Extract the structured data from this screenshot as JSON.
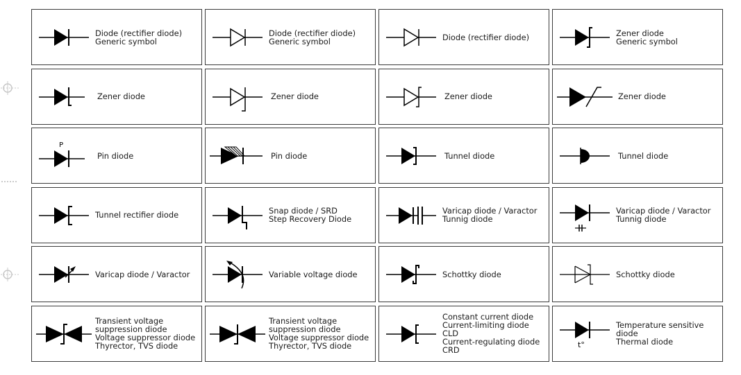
{
  "margin_icons": [
    "crosshair-icon",
    "dotted-line-icon",
    "crosshair-icon"
  ],
  "cells": [
    {
      "symbol": "filled-diode-icon",
      "lines": [
        "Diode (rectifier diode)",
        "Generic symbol"
      ]
    },
    {
      "symbol": "outline-diode-icon",
      "lines": [
        "Diode (rectifier diode)",
        "Generic symbol"
      ]
    },
    {
      "symbol": "outline-diode-icon",
      "lines": [
        "Diode (rectifier diode)"
      ]
    },
    {
      "symbol": "filled-zener-diode-icon",
      "lines": [
        "Zener diode",
        "Generic symbol"
      ]
    },
    {
      "symbol": "filled-zener-diode-icon",
      "lines": [
        "Zener diode"
      ]
    },
    {
      "symbol": "outline-zener-diode-long-tail-icon",
      "lines": [
        "Zener diode"
      ]
    },
    {
      "symbol": "outline-zener-diode-icon",
      "lines": [
        "Zener diode"
      ]
    },
    {
      "symbol": "filled-zener-diode-slanted-icon",
      "lines": [
        "Zener diode"
      ]
    },
    {
      "symbol": "pin-diode-icon",
      "symbol_text": "P",
      "lines": [
        "Pin diode"
      ]
    },
    {
      "symbol": "pin-diode-hatched-icon",
      "lines": [
        "Pin diode"
      ]
    },
    {
      "symbol": "tunnel-diode-icon",
      "lines": [
        "Tunnel diode"
      ]
    },
    {
      "symbol": "tunnel-diode-half-circle-icon",
      "lines": [
        "Tunnel diode"
      ]
    },
    {
      "symbol": "tunnel-rectifier-diode-icon",
      "lines": [
        "Tunnel rectifier diode"
      ]
    },
    {
      "symbol": "snap-diode-icon",
      "lines": [
        "Snap diode / SRD",
        "Step Recovery Diode"
      ]
    },
    {
      "symbol": "varicap-diode-capacitor-icon",
      "lines": [
        "Varicap diode / Varactor",
        "Tunnig diode"
      ]
    },
    {
      "symbol": "varicap-diode-small-capacitor-icon",
      "lines": [
        "Varicap diode / Varactor",
        "Tunnig diode"
      ]
    },
    {
      "symbol": "varicap-diode-arrow-icon",
      "lines": [
        "Varicap diode / Varactor"
      ]
    },
    {
      "symbol": "variable-voltage-diode-icon",
      "lines": [
        "Variable voltage diode"
      ]
    },
    {
      "symbol": "schottky-diode-icon",
      "lines": [
        "Schottky diode"
      ]
    },
    {
      "symbol": "schottky-diode-outline-icon",
      "lines": [
        "Schottky diode"
      ]
    },
    {
      "symbol": "tvs-diode-icon",
      "lines": [
        "Transient voltage",
        "suppression diode",
        "Voltage suppressor diode",
        "Thyrector, TVS diode"
      ]
    },
    {
      "symbol": "tvs-diode-alt-icon",
      "lines": [
        "Transient voltage",
        "suppression diode",
        "Voltage suppressor diode",
        "Thyrector, TVS diode"
      ]
    },
    {
      "symbol": "constant-current-diode-icon",
      "lines": [
        "Constant current diode",
        "Current-limiting diode",
        "CLD",
        "Current-regulating diode",
        "CRD"
      ]
    },
    {
      "symbol": "temperature-sensitive-diode-icon",
      "symbol_text": "t°",
      "lines": [
        "Temperature sensitive",
        "diode",
        "Thermal diode"
      ]
    }
  ]
}
